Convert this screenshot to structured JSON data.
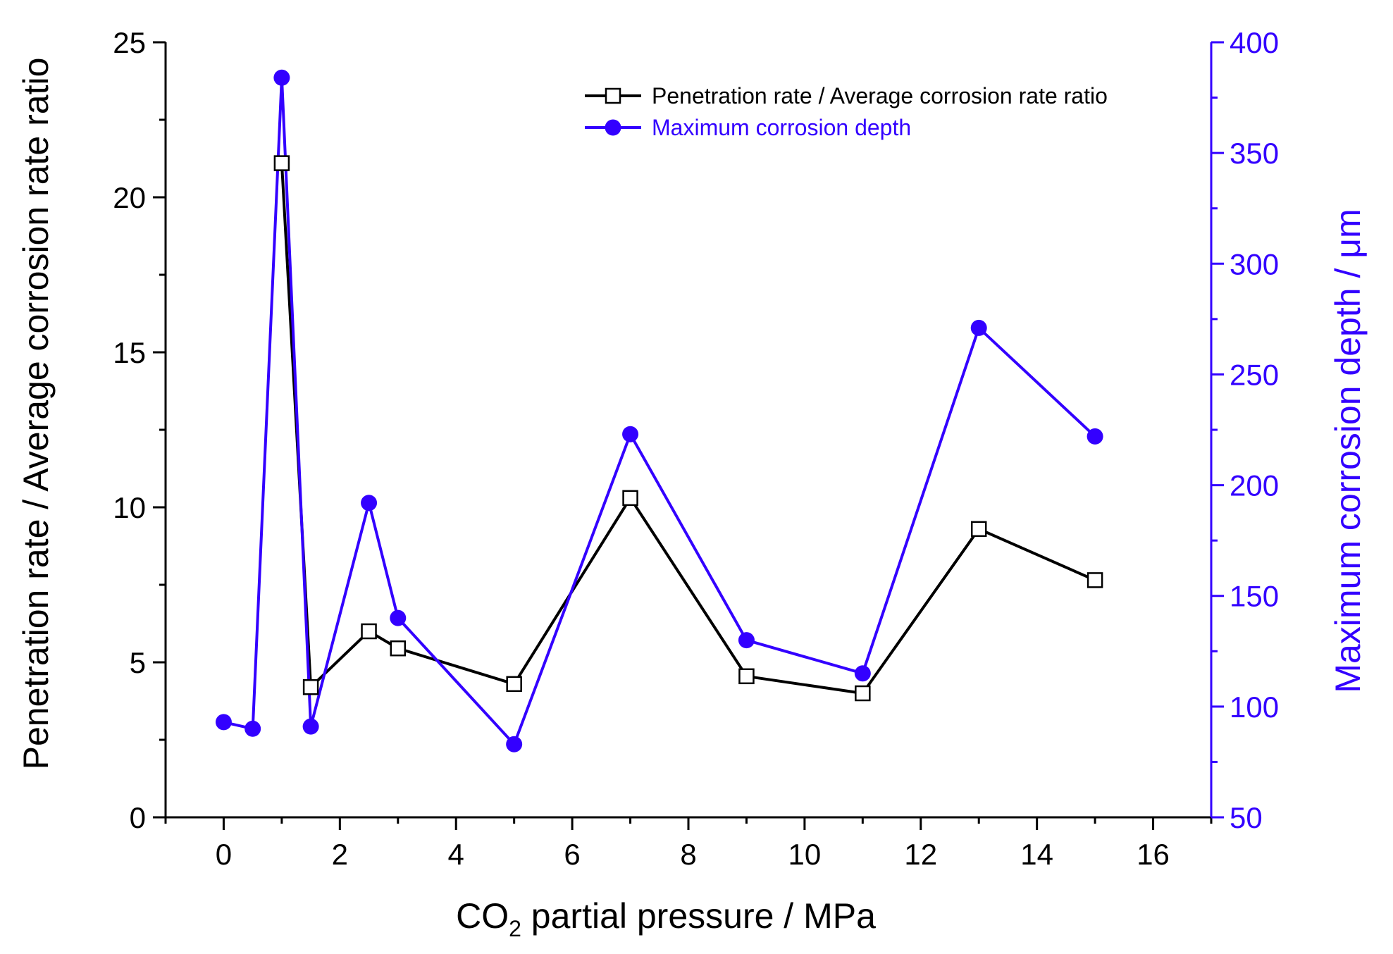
{
  "chart_data": {
    "type": "line",
    "x_label_main": "CO",
    "x_label_sub": "2",
    "x_label_rest": " partial pressure / MPa",
    "y_left_label": "Penetration rate / Average corrosion rate ratio",
    "y_right_label": "Maximum corrosion depth / μm",
    "xlim": [
      -1,
      17
    ],
    "xticks": [
      0,
      2,
      4,
      6,
      8,
      10,
      12,
      14,
      16
    ],
    "xtick_labels": [
      "0",
      "2",
      "4",
      "6",
      "8",
      "10",
      "12",
      "14",
      "16"
    ],
    "y_left_lim": [
      0,
      25
    ],
    "y_left_ticks": [
      0,
      5,
      10,
      15,
      20,
      25
    ],
    "y_left_tick_labels": [
      "0",
      "5",
      "10",
      "15",
      "20",
      "25"
    ],
    "y_right_lim": [
      50,
      400
    ],
    "y_right_ticks": [
      50,
      100,
      150,
      200,
      250,
      300,
      350,
      400
    ],
    "y_right_tick_labels": [
      "50",
      "100",
      "150",
      "200",
      "250",
      "300",
      "350",
      "400"
    ],
    "legend_position": "top-right",
    "grid": false,
    "series": [
      {
        "name": "Penetration rate / Average corrosion rate ratio",
        "axis": "left",
        "color": "#000000",
        "marker": "open-square",
        "x": [
          1,
          1.5,
          2.5,
          3,
          5,
          7,
          9,
          11,
          13,
          15
        ],
        "y": [
          21.1,
          4.2,
          6.0,
          5.45,
          4.3,
          10.3,
          4.55,
          4.0,
          9.3,
          7.65
        ]
      },
      {
        "name": "Maximum corrosion depth",
        "axis": "right",
        "color": "#3300ff",
        "marker": "filled-circle",
        "x": [
          0,
          0.5,
          1,
          1.5,
          2.5,
          3,
          5,
          7,
          9,
          11,
          13,
          15
        ],
        "y": [
          93,
          90,
          384,
          91,
          192,
          140,
          83,
          223,
          130,
          115,
          271,
          222
        ]
      }
    ]
  }
}
